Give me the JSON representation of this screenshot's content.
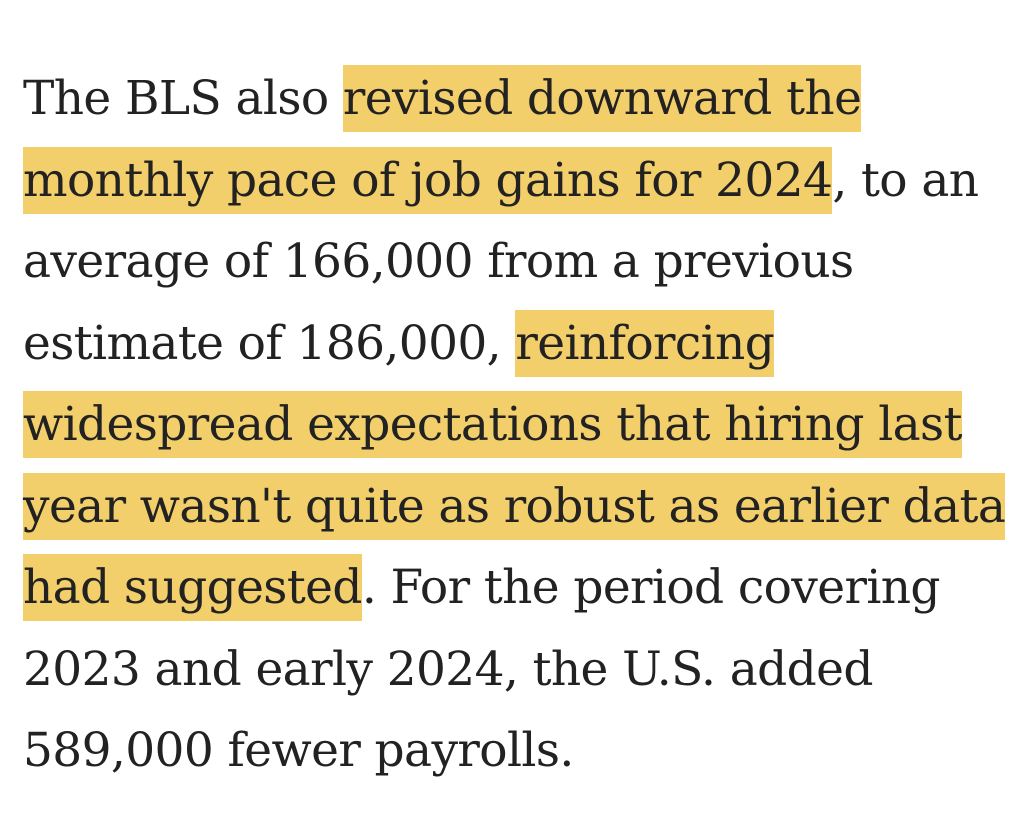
{
  "article": {
    "segments": [
      {
        "text": "The BLS also ",
        "highlighted": false
      },
      {
        "text": "revised downward the monthly pace of job gains for 2024",
        "highlighted": true
      },
      {
        "text": ", to an average of 166,000 from a previous estimate of 186,000, ",
        "highlighted": false
      },
      {
        "text": "reinforcing widespread expectations that hiring last year wasn't quite as robust as earlier data had suggested",
        "highlighted": true
      },
      {
        "text": ". For the period covering 2023 and early 2024, the U.S. added 589,000 fewer payrolls.",
        "highlighted": false
      }
    ]
  },
  "colors": {
    "text": "#222222",
    "highlight": "#f2cf6b",
    "background": "#ffffff"
  }
}
